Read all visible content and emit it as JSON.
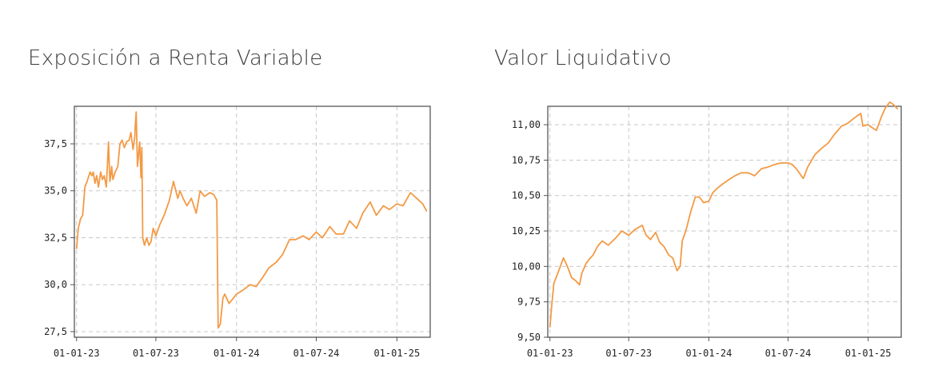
{
  "chart_data": [
    {
      "type": "line",
      "title": "Exposición a Renta Variable",
      "xlabel": "",
      "ylabel": "",
      "x_ticks": [
        "01-01-23",
        "01-07-23",
        "01-01-24",
        "01-07-24",
        "01-01-25"
      ],
      "x_range": [
        "2022-12-27",
        "2025-03-18"
      ],
      "y_ticks": [
        "27,5",
        "30,0",
        "32,5",
        "35,0",
        "37,5"
      ],
      "ylim": [
        27.2,
        39.5
      ],
      "grid": true,
      "color": "#f39a45",
      "x": [
        "2023-01-01",
        "2023-01-05",
        "2023-01-10",
        "2023-01-15",
        "2023-01-20",
        "2023-01-25",
        "2023-02-01",
        "2023-02-05",
        "2023-02-08",
        "2023-02-12",
        "2023-02-16",
        "2023-02-20",
        "2023-02-25",
        "2023-03-01",
        "2023-03-05",
        "2023-03-10",
        "2023-03-15",
        "2023-03-18",
        "2023-03-20",
        "2023-03-22",
        "2023-03-25",
        "2023-03-30",
        "2023-04-05",
        "2023-04-10",
        "2023-04-15",
        "2023-04-20",
        "2023-04-25",
        "2023-05-01",
        "2023-05-05",
        "2023-05-10",
        "2023-05-14",
        "2023-05-15",
        "2023-05-17",
        "2023-05-20",
        "2023-05-25",
        "2023-05-28",
        "2023-05-30",
        "2023-06-01",
        "2023-06-05",
        "2023-06-10",
        "2023-06-15",
        "2023-06-20",
        "2023-06-25",
        "2023-07-01",
        "2023-07-10",
        "2023-07-20",
        "2023-08-01",
        "2023-08-10",
        "2023-08-20",
        "2023-08-25",
        "2023-09-01",
        "2023-09-10",
        "2023-09-20",
        "2023-10-01",
        "2023-10-10",
        "2023-10-20",
        "2023-11-01",
        "2023-11-10",
        "2023-11-17",
        "2023-11-20",
        "2023-11-25",
        "2023-12-01",
        "2023-12-05",
        "2023-12-15",
        "2024-01-01",
        "2024-01-15",
        "2024-02-01",
        "2024-02-15",
        "2024-03-01",
        "2024-03-15",
        "2024-04-01",
        "2024-04-15",
        "2024-05-01",
        "2024-05-15",
        "2024-06-01",
        "2024-06-15",
        "2024-07-01",
        "2024-07-15",
        "2024-08-01",
        "2024-08-15",
        "2024-09-01",
        "2024-09-15",
        "2024-10-01",
        "2024-10-15",
        "2024-11-01",
        "2024-11-15",
        "2024-12-01",
        "2024-12-15",
        "2025-01-01",
        "2025-01-15",
        "2025-02-01",
        "2025-02-15",
        "2025-03-01",
        "2025-03-10"
      ],
      "values": [
        31.9,
        33.0,
        33.5,
        33.7,
        35.2,
        35.5,
        36.0,
        35.8,
        36.0,
        35.4,
        35.8,
        35.2,
        36.0,
        35.6,
        35.8,
        35.2,
        37.6,
        35.5,
        35.8,
        36.3,
        35.6,
        36.0,
        36.3,
        37.5,
        37.7,
        37.3,
        37.6,
        37.7,
        38.1,
        37.2,
        37.9,
        38.5,
        39.2,
        36.3,
        37.6,
        35.7,
        37.3,
        32.5,
        32.1,
        32.5,
        32.1,
        32.3,
        33.0,
        32.6,
        33.2,
        33.7,
        34.5,
        35.5,
        34.6,
        35.0,
        34.6,
        34.2,
        34.6,
        33.8,
        35.0,
        34.7,
        34.9,
        34.8,
        34.5,
        27.7,
        27.9,
        29.3,
        29.5,
        29.0,
        29.5,
        29.7,
        30.0,
        29.9,
        30.4,
        30.9,
        31.2,
        31.6,
        32.4,
        32.4,
        32.6,
        32.4,
        32.8,
        32.5,
        33.1,
        32.7,
        32.7,
        33.4,
        33.0,
        33.8,
        34.4,
        33.7,
        34.2,
        34.0,
        34.3,
        34.2,
        34.9,
        34.6,
        34.3,
        33.9
      ]
    },
    {
      "type": "line",
      "title": "Valor Liquidativo",
      "xlabel": "",
      "ylabel": "",
      "x_ticks": [
        "01-01-23",
        "01-07-23",
        "01-01-24",
        "01-07-24",
        "01-01-25"
      ],
      "x_range": [
        "2022-12-27",
        "2025-03-18"
      ],
      "y_ticks": [
        "9,50",
        "9,75",
        "10,00",
        "10,25",
        "10,50",
        "10,75",
        "11,00"
      ],
      "ylim": [
        9.5,
        11.13
      ],
      "grid": true,
      "color": "#f39a45",
      "x": [
        "2023-01-01",
        "2023-01-05",
        "2023-01-10",
        "2023-01-20",
        "2023-02-01",
        "2023-02-10",
        "2023-02-20",
        "2023-03-01",
        "2023-03-10",
        "2023-03-15",
        "2023-03-25",
        "2023-04-01",
        "2023-04-10",
        "2023-04-20",
        "2023-05-01",
        "2023-05-15",
        "2023-06-01",
        "2023-06-15",
        "2023-07-01",
        "2023-07-15",
        "2023-08-01",
        "2023-08-10",
        "2023-08-20",
        "2023-09-01",
        "2023-09-10",
        "2023-09-20",
        "2023-10-01",
        "2023-10-10",
        "2023-10-20",
        "2023-10-27",
        "2023-11-01",
        "2023-11-10",
        "2023-11-20",
        "2023-12-01",
        "2023-12-10",
        "2023-12-20",
        "2024-01-01",
        "2024-01-10",
        "2024-01-20",
        "2024-02-01",
        "2024-02-15",
        "2024-03-01",
        "2024-03-15",
        "2024-04-01",
        "2024-04-15",
        "2024-05-01",
        "2024-05-15",
        "2024-06-01",
        "2024-06-15",
        "2024-07-01",
        "2024-07-10",
        "2024-07-20",
        "2024-08-05",
        "2024-08-15",
        "2024-09-01",
        "2024-09-15",
        "2024-10-01",
        "2024-10-15",
        "2024-11-01",
        "2024-11-15",
        "2024-12-01",
        "2024-12-15",
        "2024-12-20",
        "2025-01-01",
        "2025-01-10",
        "2025-01-20",
        "2025-02-01",
        "2025-02-10",
        "2025-02-20",
        "2025-03-01",
        "2025-03-10"
      ],
      "values": [
        9.57,
        9.72,
        9.88,
        9.96,
        10.06,
        10.0,
        9.92,
        9.9,
        9.87,
        9.95,
        10.02,
        10.05,
        10.08,
        10.14,
        10.18,
        10.15,
        10.2,
        10.25,
        10.22,
        10.26,
        10.29,
        10.22,
        10.19,
        10.24,
        10.17,
        10.14,
        10.08,
        10.06,
        9.97,
        10.0,
        10.18,
        10.26,
        10.38,
        10.49,
        10.49,
        10.45,
        10.46,
        10.52,
        10.55,
        10.58,
        10.61,
        10.64,
        10.66,
        10.66,
        10.64,
        10.69,
        10.7,
        10.72,
        10.73,
        10.73,
        10.72,
        10.69,
        10.62,
        10.7,
        10.79,
        10.83,
        10.87,
        10.93,
        10.99,
        11.01,
        11.05,
        11.08,
        10.99,
        11.0,
        10.98,
        10.96,
        11.06,
        11.12,
        11.16,
        11.14,
        11.11
      ]
    }
  ]
}
